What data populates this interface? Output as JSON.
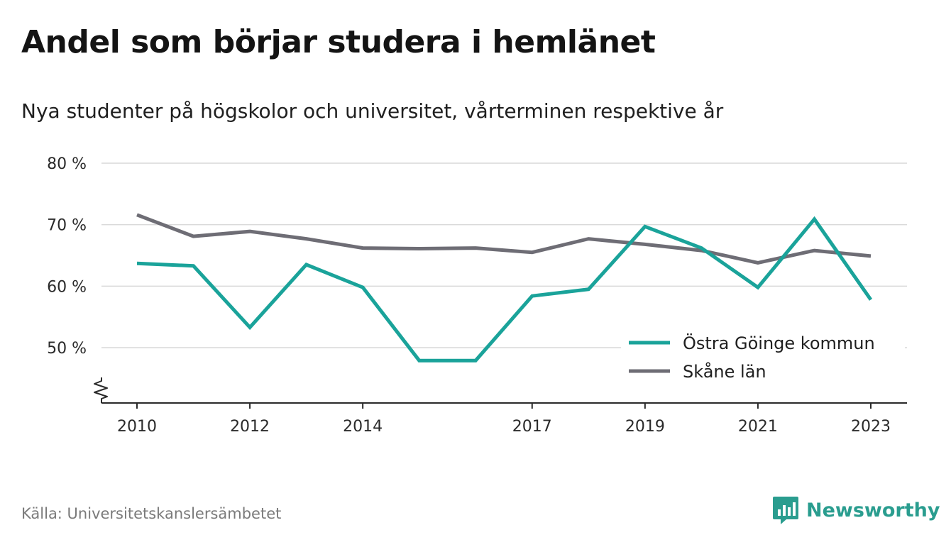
{
  "header": {
    "title": "Andel som börjar studera i hemlänet",
    "subtitle": "Nya studenter på högskolor och universitet, vårterminen respektive år"
  },
  "footer": {
    "source": "Källa: Universitetskanslersämbetet",
    "brand": "Newsworthy",
    "brand_icon": "bar-chart-speech-bubble-icon",
    "brand_color": "#2a9d8f"
  },
  "chart_data": {
    "type": "line",
    "x": [
      2010,
      2011,
      2012,
      2013,
      2014,
      2015,
      2016,
      2017,
      2018,
      2019,
      2020,
      2021,
      2022,
      2023
    ],
    "x_tick_labels": [
      "2010",
      "2012",
      "2014",
      "2017",
      "2019",
      "2021",
      "2023"
    ],
    "x_ticks": [
      2010,
      2012,
      2014,
      2017,
      2019,
      2021,
      2023
    ],
    "y_ticks": [
      50,
      60,
      70,
      80
    ],
    "y_tick_labels": [
      "50 %",
      "60 %",
      "70 %",
      "80 %"
    ],
    "ylim": [
      41,
      80
    ],
    "y_axis_break": true,
    "grid": true,
    "legend_position": "bottom-right",
    "series": [
      {
        "name": "Östra Göinge kommun",
        "color": "#1aa39a",
        "values": [
          63.7,
          63.3,
          53.3,
          63.5,
          59.8,
          47.9,
          47.9,
          58.4,
          59.5,
          69.7,
          66.2,
          59.8,
          70.9,
          57.8
        ]
      },
      {
        "name": "Skåne län",
        "color": "#6e6d75",
        "values": [
          71.6,
          68.1,
          68.9,
          67.7,
          66.2,
          66.1,
          66.2,
          65.5,
          67.7,
          66.8,
          65.8,
          63.8,
          65.8,
          64.9
        ]
      }
    ]
  }
}
